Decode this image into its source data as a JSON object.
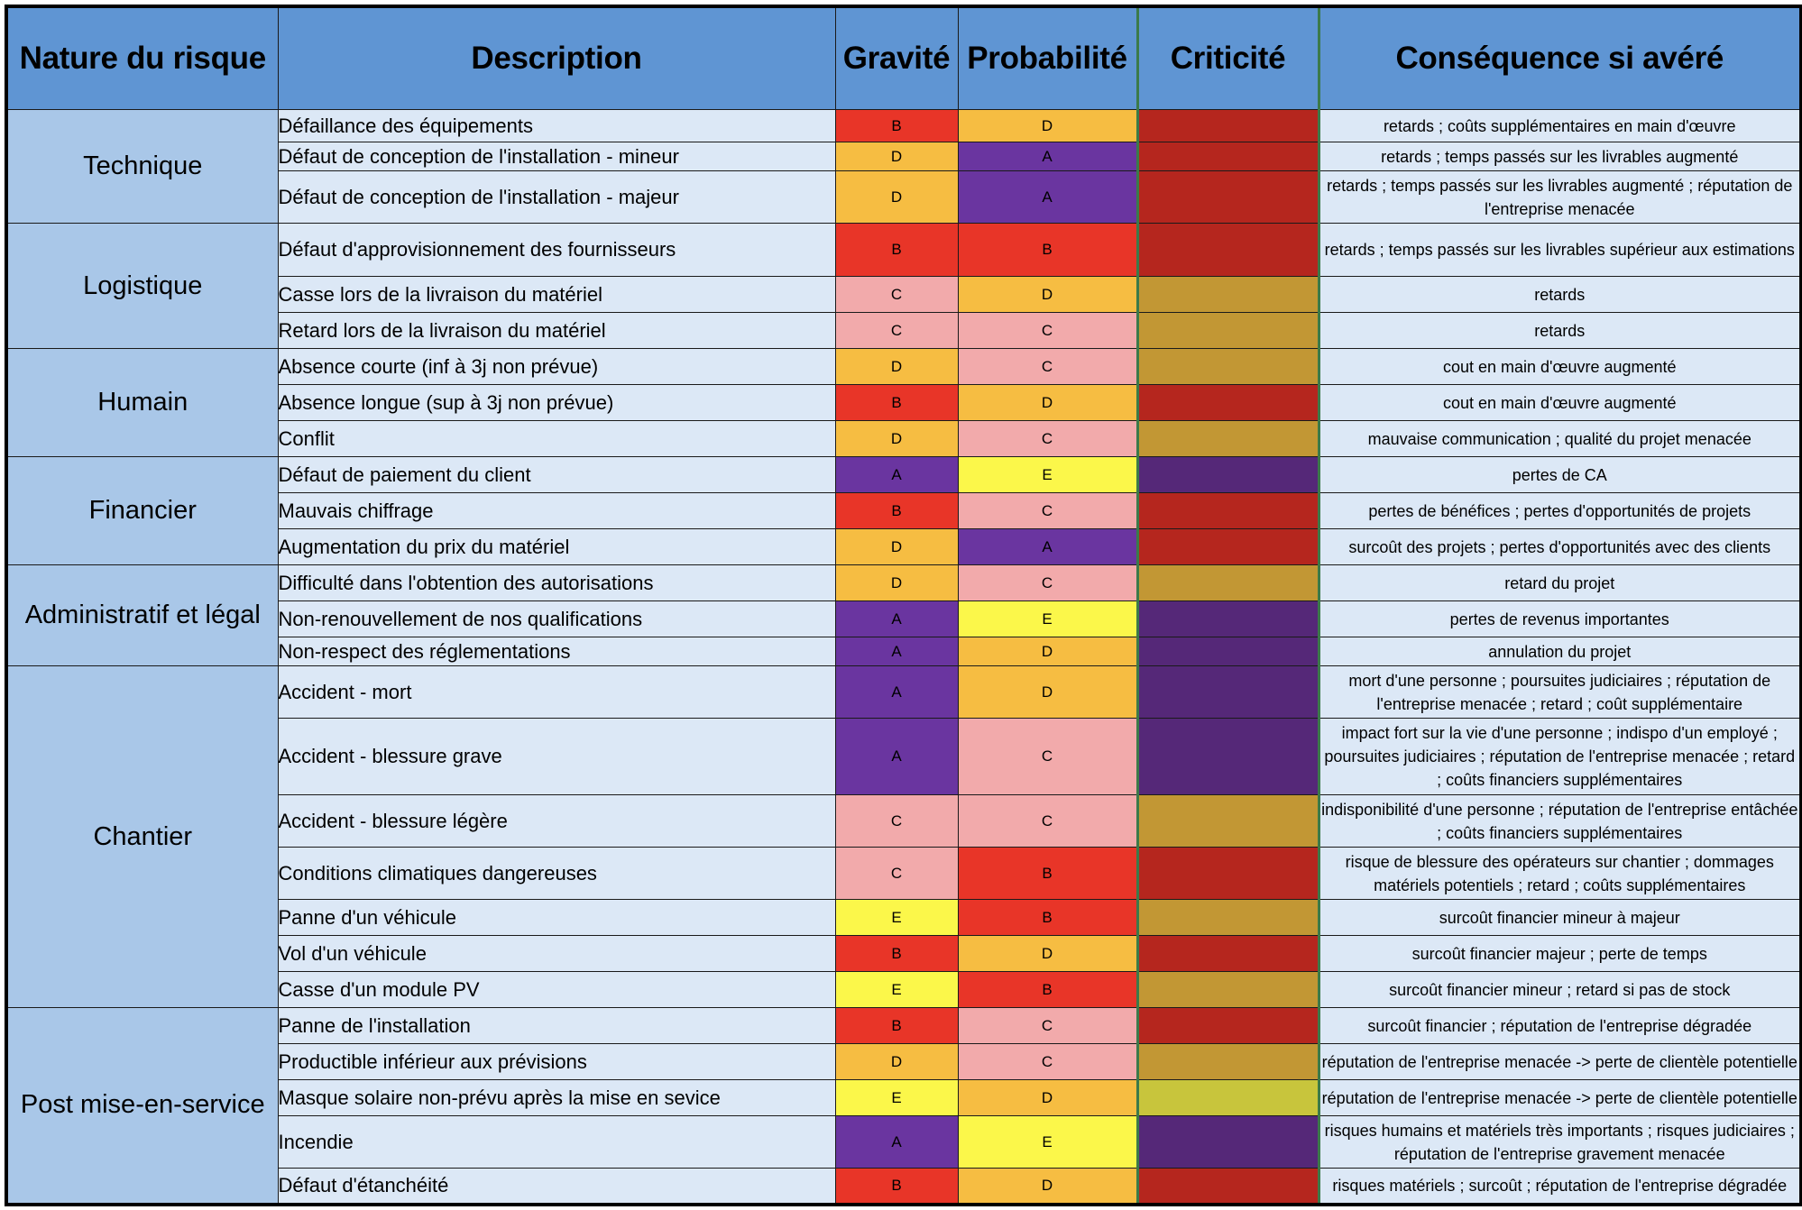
{
  "headers": {
    "nature": "Nature du risque",
    "description": "Description",
    "gravite": "Gravité",
    "probabilite": "Probabilité",
    "criticite": "Criticité",
    "consequence": "Conséquence si avéré"
  },
  "colors": {
    "header": "#5f95d3",
    "category": "#a9c7e8",
    "row": "#dce8f6",
    "level": {
      "A": "#6a35a0",
      "B": "#e83528",
      "C": "#f2aaab",
      "D": "#f6bd42",
      "E": "#fbf74a"
    },
    "criticite": {
      "purple": "#552878",
      "red": "#b5261e",
      "gold": "#c29734",
      "yellow": "#c8c53c"
    }
  },
  "categories": [
    {
      "name": "Technique",
      "rows": [
        {
          "description": "Défaillance des équipements",
          "gravite": "B",
          "probabilite": "D",
          "criticite": "red",
          "consequence": "retards ; coûts supplémentaires en main d'œuvre"
        },
        {
          "description": "Défaut de conception de l'installation - mineur",
          "gravite": "D",
          "probabilite": "A",
          "criticite": "red",
          "consequence": "retards ; temps passés sur les livrables augmenté"
        },
        {
          "description": "Défaut de conception de l'installation - majeur",
          "gravite": "D",
          "probabilite": "A",
          "criticite": "red",
          "consequence": "retards ; temps passés sur les livrables augmenté ; réputation de l'entreprise menacée"
        }
      ]
    },
    {
      "name": "Logistique",
      "rows": [
        {
          "description": "Défaut d'approvisionnement des fournisseurs",
          "gravite": "B",
          "probabilite": "B",
          "criticite": "red",
          "consequence": "retards ; temps passés sur les livrables supérieur aux estimations"
        },
        {
          "description": "Casse lors de la livraison du matériel",
          "gravite": "C",
          "probabilite": "D",
          "criticite": "gold",
          "consequence": "retards"
        },
        {
          "description": "Retard lors de la livraison du matériel",
          "gravite": "C",
          "probabilite": "C",
          "criticite": "gold",
          "consequence": "retards"
        }
      ]
    },
    {
      "name": "Humain",
      "rows": [
        {
          "description": "Absence courte (inf à 3j non prévue)",
          "gravite": "D",
          "probabilite": "C",
          "criticite": "gold",
          "consequence": "cout en main d'œuvre augmenté"
        },
        {
          "description": "Absence longue (sup à 3j non prévue)",
          "gravite": "B",
          "probabilite": "D",
          "criticite": "red",
          "consequence": "cout en main d'œuvre augmenté"
        },
        {
          "description": "Conflit",
          "gravite": "D",
          "probabilite": "C",
          "criticite": "gold",
          "consequence": "mauvaise communication ; qualité du projet menacée"
        }
      ]
    },
    {
      "name": "Financier",
      "rows": [
        {
          "description": "Défaut de paiement du client",
          "gravite": "A",
          "probabilite": "E",
          "criticite": "purple",
          "consequence": "pertes de CA"
        },
        {
          "description": "Mauvais chiffrage",
          "gravite": "B",
          "probabilite": "C",
          "criticite": "red",
          "consequence": "pertes de bénéfices ; pertes d'opportunités de projets"
        },
        {
          "description": "Augmentation du prix du matériel",
          "gravite": "D",
          "probabilite": "A",
          "criticite": "red",
          "consequence": "surcoût des projets ; pertes d'opportunités avec des clients"
        }
      ]
    },
    {
      "name": "Administratif et légal",
      "rows": [
        {
          "description": "Difficulté dans l'obtention des autorisations",
          "gravite": "D",
          "probabilite": "C",
          "criticite": "gold",
          "consequence": "retard du projet"
        },
        {
          "description": "Non-renouvellement de nos qualifications",
          "gravite": "A",
          "probabilite": "E",
          "criticite": "purple",
          "consequence": "pertes de revenus importantes"
        },
        {
          "description": "Non-respect des réglementations",
          "gravite": "A",
          "probabilite": "D",
          "criticite": "purple",
          "consequence": "annulation du projet"
        }
      ]
    },
    {
      "name": "Chantier",
      "rows": [
        {
          "description": "Accident - mort",
          "gravite": "A",
          "probabilite": "D",
          "criticite": "purple",
          "consequence": "mort d'une personne ; poursuites judiciaires ; réputation de l'entreprise menacée ; retard ; coût supplémentaire"
        },
        {
          "description": "Accident - blessure grave",
          "gravite": "A",
          "probabilite": "C",
          "criticite": "purple",
          "consequence": "impact fort sur la vie d'une personne ; indispo d'un employé ; poursuites judiciaires ; réputation de l'entreprise menacée ; retard ; coûts financiers supplémentaires"
        },
        {
          "description": "Accident - blessure légère",
          "gravite": "C",
          "probabilite": "C",
          "criticite": "gold",
          "consequence": "indisponibilité d'une personne ; réputation de l'entreprise entâchée ; coûts financiers supplémentaires"
        },
        {
          "description": "Conditions climatiques dangereuses",
          "gravite": "C",
          "probabilite": "B",
          "criticite": "red",
          "consequence": "risque de blessure des opérateurs sur chantier ; dommages matériels potentiels ; retard ; coûts supplémentaires"
        },
        {
          "description": "Panne d'un véhicule",
          "gravite": "E",
          "probabilite": "B",
          "criticite": "gold",
          "consequence": "surcoût financier mineur à majeur"
        },
        {
          "description": "Vol d'un véhicule",
          "gravite": "B",
          "probabilite": "D",
          "criticite": "red",
          "consequence": "surcoût financier majeur ; perte de temps"
        },
        {
          "description": "Casse d'un module PV",
          "gravite": "E",
          "probabilite": "B",
          "criticite": "gold",
          "consequence": "surcoût financier mineur ; retard si pas de stock"
        }
      ]
    },
    {
      "name": "Post mise-en-service",
      "rows": [
        {
          "description": "Panne de l'installation",
          "gravite": "B",
          "probabilite": "C",
          "criticite": "red",
          "consequence": "surcoût financier ; réputation de l'entreprise dégradée"
        },
        {
          "description": "Productible inférieur aux prévisions",
          "gravite": "D",
          "probabilite": "C",
          "criticite": "gold",
          "consequence": "réputation de l'entreprise menacée -> perte de clientèle potentielle"
        },
        {
          "description": "Masque solaire non-prévu après la mise en sevice",
          "gravite": "E",
          "probabilite": "D",
          "criticite": "yellow",
          "consequence": "réputation de l'entreprise menacée -> perte de clientèle potentielle"
        },
        {
          "description": "Incendie",
          "gravite": "A",
          "probabilite": "E",
          "criticite": "purple",
          "consequence": "risques humains et matériels très importants ; risques judiciaires ; réputation de l'entreprise gravement menacée"
        },
        {
          "description": "Défaut d'étanchéité",
          "gravite": "B",
          "probabilite": "D",
          "criticite": "red",
          "consequence": "risques matériels ; surcoût ; réputation de l'entreprise dégradée"
        }
      ]
    }
  ]
}
